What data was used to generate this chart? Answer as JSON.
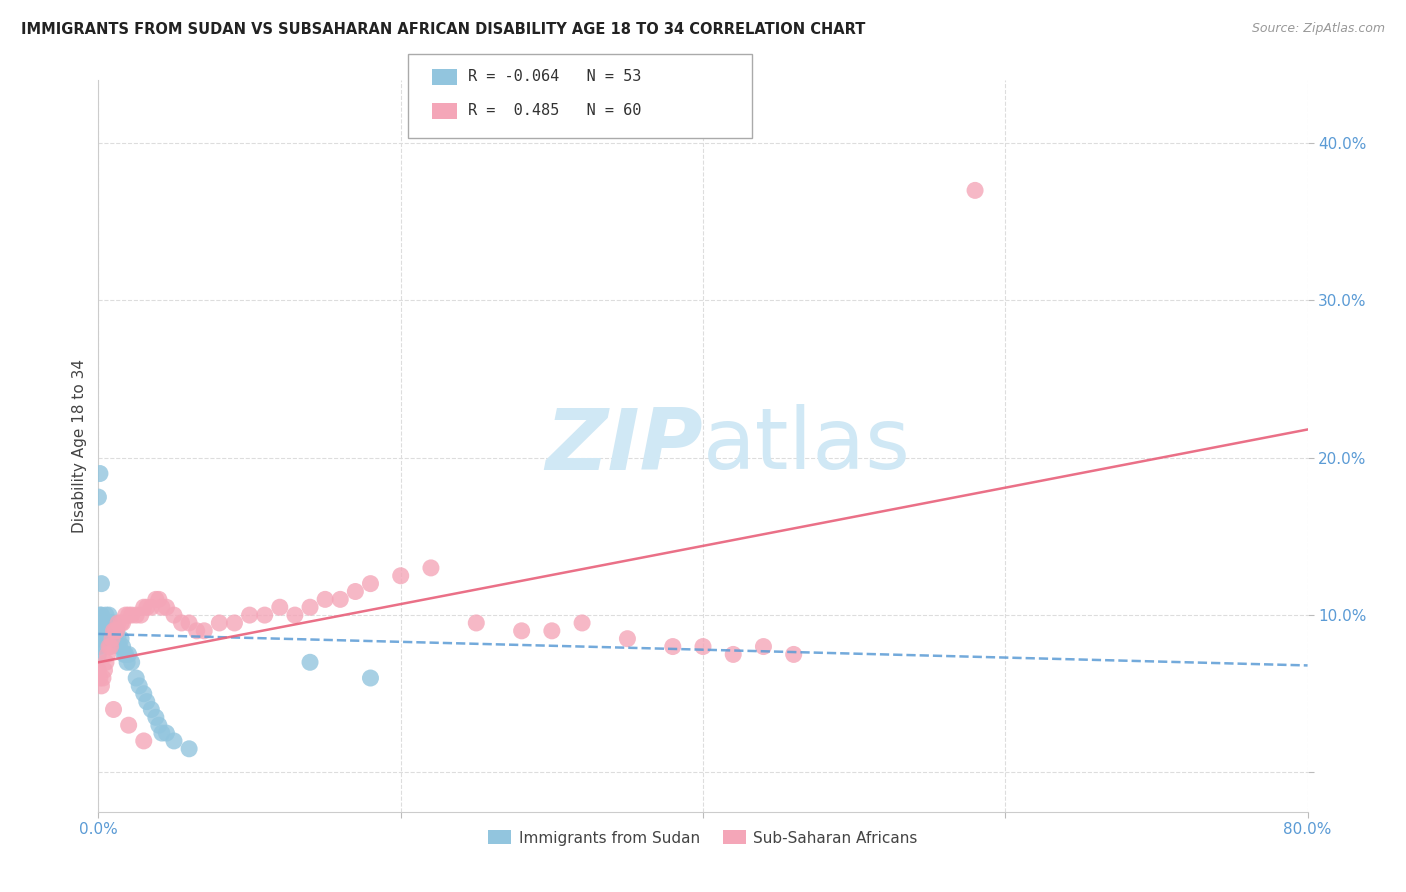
{
  "title": "IMMIGRANTS FROM SUDAN VS SUBSAHARAN AFRICAN DISABILITY AGE 18 TO 34 CORRELATION CHART",
  "source": "Source: ZipAtlas.com",
  "ylabel": "Disability Age 18 to 34",
  "xlim": [
    0.0,
    0.8
  ],
  "ylim": [
    -0.025,
    0.44
  ],
  "yticks": [
    0.0,
    0.1,
    0.2,
    0.3,
    0.4
  ],
  "ytick_labels": [
    "",
    "10.0%",
    "20.0%",
    "30.0%",
    "40.0%"
  ],
  "xticks": [
    0.0,
    0.2,
    0.4,
    0.6,
    0.8
  ],
  "xtick_labels": [
    "0.0%",
    "",
    "",
    "",
    "80.0%"
  ],
  "legend_label1": "Immigrants from Sudan",
  "legend_label2": "Sub-Saharan Africans",
  "R1": -0.064,
  "N1": 53,
  "R2": 0.485,
  "N2": 60,
  "color1": "#92c5de",
  "color2": "#f4a6b8",
  "line_color1": "#5b9bd5",
  "line_color2": "#e8607a",
  "watermark_color": "#d0e8f5",
  "background_color": "#ffffff",
  "axis_tick_color": "#5b9bd5",
  "title_color": "#222222",
  "source_color": "#999999",
  "ylabel_color": "#444444",
  "grid_color": "#dddddd",
  "legend_border_color": "#aaaaaa",
  "sudan_x": [
    0.0,
    0.0,
    0.0,
    0.0,
    0.0,
    0.001,
    0.001,
    0.001,
    0.002,
    0.002,
    0.002,
    0.003,
    0.003,
    0.004,
    0.004,
    0.005,
    0.005,
    0.006,
    0.006,
    0.007,
    0.007,
    0.008,
    0.008,
    0.009,
    0.01,
    0.01,
    0.011,
    0.012,
    0.013,
    0.014,
    0.015,
    0.016,
    0.017,
    0.018,
    0.019,
    0.02,
    0.022,
    0.025,
    0.027,
    0.03,
    0.032,
    0.035,
    0.038,
    0.04,
    0.042,
    0.045,
    0.05,
    0.06,
    0.14,
    0.18,
    0.0,
    0.001,
    0.002
  ],
  "sudan_y": [
    0.09,
    0.095,
    0.085,
    0.08,
    0.075,
    0.1,
    0.095,
    0.09,
    0.1,
    0.095,
    0.085,
    0.095,
    0.09,
    0.095,
    0.085,
    0.1,
    0.095,
    0.095,
    0.09,
    0.1,
    0.095,
    0.095,
    0.09,
    0.085,
    0.095,
    0.09,
    0.085,
    0.09,
    0.085,
    0.08,
    0.085,
    0.08,
    0.075,
    0.075,
    0.07,
    0.075,
    0.07,
    0.06,
    0.055,
    0.05,
    0.045,
    0.04,
    0.035,
    0.03,
    0.025,
    0.025,
    0.02,
    0.015,
    0.07,
    0.06,
    0.175,
    0.19,
    0.12
  ],
  "subsaharan_x": [
    0.0,
    0.001,
    0.002,
    0.003,
    0.004,
    0.005,
    0.006,
    0.007,
    0.008,
    0.009,
    0.01,
    0.011,
    0.012,
    0.013,
    0.015,
    0.016,
    0.018,
    0.02,
    0.022,
    0.025,
    0.028,
    0.03,
    0.032,
    0.035,
    0.038,
    0.04,
    0.042,
    0.045,
    0.05,
    0.055,
    0.06,
    0.065,
    0.07,
    0.08,
    0.09,
    0.1,
    0.11,
    0.12,
    0.13,
    0.14,
    0.15,
    0.16,
    0.17,
    0.18,
    0.2,
    0.22,
    0.25,
    0.28,
    0.3,
    0.32,
    0.35,
    0.38,
    0.4,
    0.42,
    0.44,
    0.46,
    0.01,
    0.02,
    0.03,
    0.58
  ],
  "subsaharan_y": [
    0.065,
    0.06,
    0.055,
    0.06,
    0.065,
    0.07,
    0.075,
    0.08,
    0.08,
    0.085,
    0.09,
    0.09,
    0.09,
    0.095,
    0.095,
    0.095,
    0.1,
    0.1,
    0.1,
    0.1,
    0.1,
    0.105,
    0.105,
    0.105,
    0.11,
    0.11,
    0.105,
    0.105,
    0.1,
    0.095,
    0.095,
    0.09,
    0.09,
    0.095,
    0.095,
    0.1,
    0.1,
    0.105,
    0.1,
    0.105,
    0.11,
    0.11,
    0.115,
    0.12,
    0.125,
    0.13,
    0.095,
    0.09,
    0.09,
    0.095,
    0.085,
    0.08,
    0.08,
    0.075,
    0.08,
    0.075,
    0.04,
    0.03,
    0.02,
    0.37
  ]
}
